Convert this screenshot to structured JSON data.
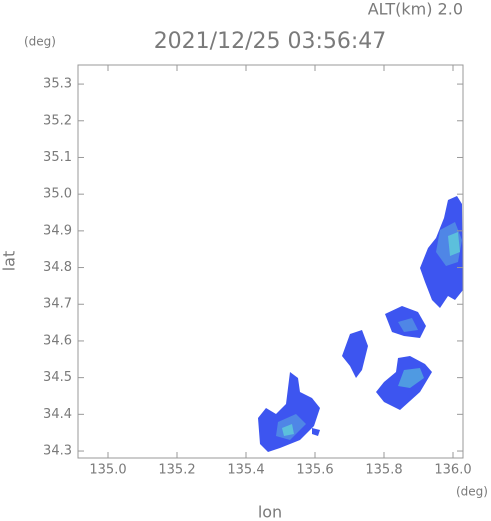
{
  "chart_data": {
    "type": "radar-map",
    "title": "2021/12/25 03:56:47",
    "subtitle": "ALT(km) 2.0",
    "x_label": "lon",
    "y_label": "lat",
    "x_unit": "(deg)",
    "y_unit": "(deg)",
    "xlim": [
      134.913,
      136.029
    ],
    "ylim": [
      34.281,
      35.352
    ],
    "xticks": [
      {
        "value": 135,
        "label": "135.0"
      },
      135.2,
      135.4,
      135.6,
      135.8,
      {
        "value": 136,
        "label": "136.0"
      }
    ],
    "yticks": [
      34.3,
      34.4,
      34.5,
      34.6,
      34.7,
      34.8,
      34.9,
      {
        "value": 35,
        "label": "35.0"
      },
      35.1,
      35.2,
      35.3
    ]
  }
}
